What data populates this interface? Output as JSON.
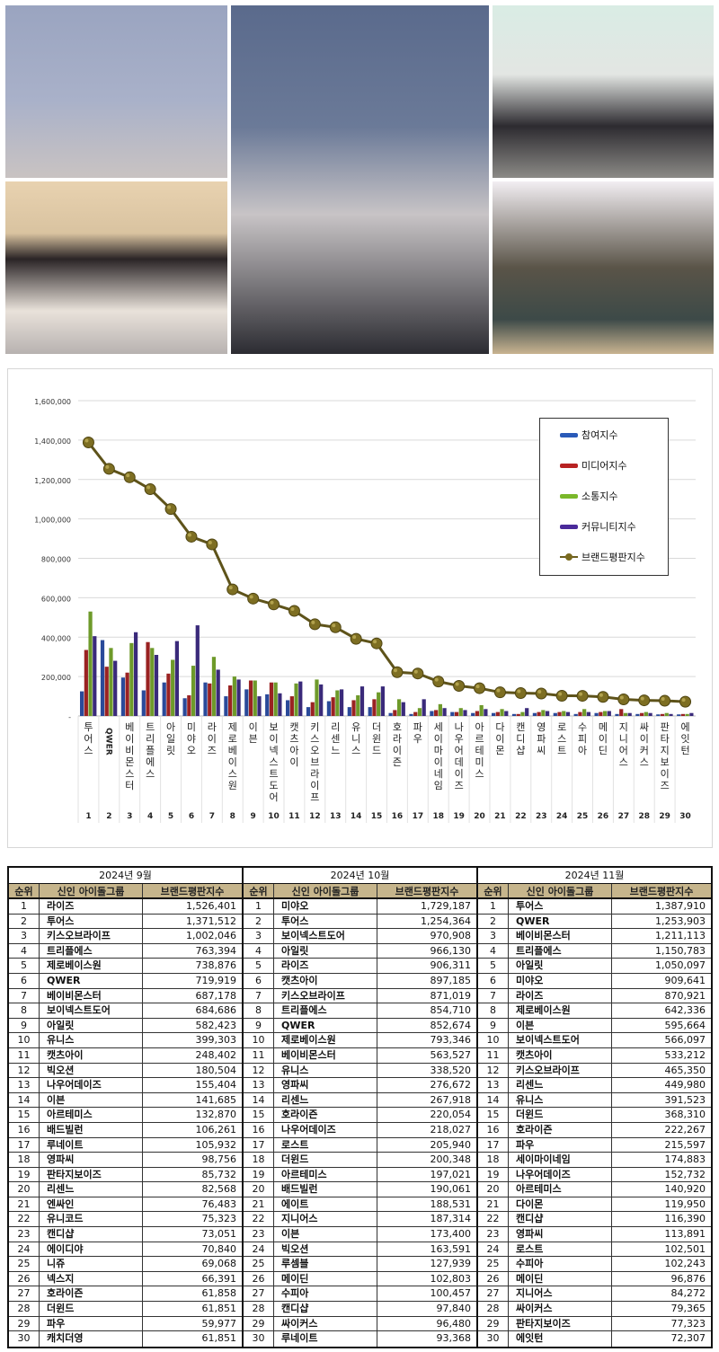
{
  "photos": [
    {
      "id": "photo-girl-group-5-members",
      "caption": ""
    },
    {
      "id": "photo-large-girl-group",
      "caption": ""
    },
    {
      "id": "photo-boy-group-5-members",
      "caption": ""
    },
    {
      "id": "photo-band-4-members",
      "caption": ""
    },
    {
      "id": "photo-girl-group-6-members",
      "caption": ""
    }
  ],
  "chart_data": {
    "type": "bar",
    "title": "",
    "xlabel": "",
    "ylabel": "",
    "ylim": [
      0,
      1600000
    ],
    "yticks": [
      "-",
      "200,000",
      "400,000",
      "600,000",
      "800,000",
      "1,000,000",
      "1,200,000",
      "1,400,000",
      "1,600,000"
    ],
    "grid": true,
    "legend_position": "upper-right",
    "categories": [
      "투어스",
      "QWER",
      "베이비몬스터",
      "트리플에스",
      "아일릿",
      "미야오",
      "라이즈",
      "제로베이스원",
      "이븐",
      "보이넥스트도어",
      "캣츠아이",
      "키스오브라이프",
      "리센느",
      "유니스",
      "더윈드",
      "호라이즌",
      "파우",
      "세이마이네임",
      "나우어데이즈",
      "아르테미스",
      "다이몬",
      "캔디샵",
      "영파씨",
      "로스트",
      "수피아",
      "메이딘",
      "지니어스",
      "싸이커스",
      "판타지보이즈",
      "에잇턴"
    ],
    "ranks": [
      1,
      2,
      3,
      4,
      5,
      6,
      7,
      8,
      9,
      10,
      11,
      12,
      13,
      14,
      15,
      16,
      17,
      18,
      19,
      20,
      21,
      22,
      23,
      24,
      25,
      26,
      27,
      28,
      29,
      30
    ],
    "series": [
      {
        "name": "참여지수",
        "color": "#2a4a9a",
        "values": [
          125000,
          385000,
          195000,
          130000,
          170000,
          90000,
          170000,
          100000,
          135000,
          110000,
          80000,
          45000,
          75000,
          45000,
          45000,
          15000,
          10000,
          25000,
          20000,
          15000,
          15000,
          10000,
          15000,
          15000,
          10000,
          15000,
          10000,
          10000,
          8000,
          8000
        ]
      },
      {
        "name": "미디어지수",
        "color": "#9a2222",
        "values": [
          335000,
          250000,
          220000,
          375000,
          215000,
          105000,
          165000,
          155000,
          180000,
          170000,
          100000,
          70000,
          95000,
          80000,
          85000,
          30000,
          20000,
          30000,
          20000,
          25000,
          20000,
          10000,
          20000,
          20000,
          20000,
          20000,
          35000,
          15000,
          10000,
          10000
        ]
      },
      {
        "name": "소통지수",
        "color": "#6e9a2a",
        "values": [
          530000,
          345000,
          370000,
          345000,
          285000,
          255000,
          300000,
          200000,
          180000,
          170000,
          165000,
          185000,
          130000,
          105000,
          120000,
          85000,
          40000,
          60000,
          40000,
          55000,
          35000,
          20000,
          30000,
          25000,
          35000,
          25000,
          15000,
          20000,
          15000,
          10000
        ]
      },
      {
        "name": "커뮤니티지수",
        "color": "#3a2a7a",
        "values": [
          405000,
          280000,
          425000,
          310000,
          380000,
          460000,
          235000,
          185000,
          100000,
          115000,
          175000,
          160000,
          135000,
          150000,
          150000,
          70000,
          85000,
          40000,
          30000,
          35000,
          25000,
          40000,
          25000,
          20000,
          20000,
          25000,
          15000,
          15000,
          10000,
          15000
        ]
      },
      {
        "name": "브랜드평판지수",
        "color": "#6b5e1e",
        "type": "line",
        "values": [
          1387910,
          1253903,
          1211113,
          1150783,
          1050097,
          909641,
          870921,
          642336,
          595664,
          566097,
          533212,
          465350,
          449980,
          391523,
          368310,
          222267,
          215597,
          174883,
          152732,
          140920,
          119950,
          116390,
          113891,
          102501,
          102243,
          96876,
          84272,
          79365,
          77323,
          72307
        ]
      }
    ]
  },
  "legend": {
    "items": [
      {
        "label": "참여지수",
        "color": "#2a5ab8"
      },
      {
        "label": "미디어지수",
        "color": "#b82222"
      },
      {
        "label": "소통지수",
        "color": "#7ab82a"
      },
      {
        "label": "커뮤니티지수",
        "color": "#4a2a9a"
      },
      {
        "label": "브랜드평판지수",
        "color": "#6b5e1e"
      }
    ]
  },
  "tables": {
    "headers": {
      "rank": "순위",
      "name": "신인 아이돌그룹",
      "score": "브랜드평판지수"
    },
    "months": [
      {
        "title": "2024년 9월",
        "rows": [
          {
            "rank": "1",
            "name": "라이즈",
            "score": "1,526,401"
          },
          {
            "rank": "2",
            "name": "투어스",
            "score": "1,371,512"
          },
          {
            "rank": "3",
            "name": "키스오브라이프",
            "score": "1,002,046"
          },
          {
            "rank": "4",
            "name": "트리플에스",
            "score": "763,394"
          },
          {
            "rank": "5",
            "name": "제로베이스원",
            "score": "738,876"
          },
          {
            "rank": "6",
            "name": "QWER",
            "score": "719,919"
          },
          {
            "rank": "7",
            "name": "베이비몬스터",
            "score": "687,178"
          },
          {
            "rank": "8",
            "name": "보이넥스트도어",
            "score": "684,686"
          },
          {
            "rank": "9",
            "name": "아일릿",
            "score": "582,423"
          },
          {
            "rank": "10",
            "name": "유니스",
            "score": "399,303"
          },
          {
            "rank": "11",
            "name": "캣츠아이",
            "score": "248,402"
          },
          {
            "rank": "12",
            "name": "빅오션",
            "score": "180,504"
          },
          {
            "rank": "13",
            "name": "나우어데이즈",
            "score": "155,404"
          },
          {
            "rank": "14",
            "name": "이븐",
            "score": "141,685"
          },
          {
            "rank": "15",
            "name": "아르테미스",
            "score": "132,870"
          },
          {
            "rank": "16",
            "name": "배드빌런",
            "score": "106,261"
          },
          {
            "rank": "17",
            "name": "루네이트",
            "score": "105,932"
          },
          {
            "rank": "18",
            "name": "영파씨",
            "score": "98,756"
          },
          {
            "rank": "19",
            "name": "판타지보이즈",
            "score": "85,732"
          },
          {
            "rank": "20",
            "name": "리센느",
            "score": "82,568"
          },
          {
            "rank": "21",
            "name": "엔싸인",
            "score": "76,483"
          },
          {
            "rank": "22",
            "name": "유니코드",
            "score": "75,323"
          },
          {
            "rank": "23",
            "name": "캔디샵",
            "score": "73,051"
          },
          {
            "rank": "24",
            "name": "에이디야",
            "score": "70,840"
          },
          {
            "rank": "25",
            "name": "니쥬",
            "score": "69,068"
          },
          {
            "rank": "26",
            "name": "넥스지",
            "score": "66,391"
          },
          {
            "rank": "27",
            "name": "호라이즌",
            "score": "61,858"
          },
          {
            "rank": "28",
            "name": "더윈드",
            "score": "61,851"
          },
          {
            "rank": "29",
            "name": "파우",
            "score": "59,977"
          },
          {
            "rank": "30",
            "name": "캐치더영",
            "score": "61,851"
          }
        ]
      },
      {
        "title": "2024년 10월",
        "rows": [
          {
            "rank": "1",
            "name": "미야오",
            "score": "1,729,187"
          },
          {
            "rank": "2",
            "name": "투어스",
            "score": "1,254,364"
          },
          {
            "rank": "3",
            "name": "보이넥스트도어",
            "score": "970,908"
          },
          {
            "rank": "4",
            "name": "아일릿",
            "score": "966,130"
          },
          {
            "rank": "5",
            "name": "라이즈",
            "score": "906,311"
          },
          {
            "rank": "6",
            "name": "캣츠아이",
            "score": "897,185"
          },
          {
            "rank": "7",
            "name": "키스오브라이프",
            "score": "871,019"
          },
          {
            "rank": "8",
            "name": "트리플에스",
            "score": "854,710"
          },
          {
            "rank": "9",
            "name": "QWER",
            "score": "852,674"
          },
          {
            "rank": "10",
            "name": "제로베이스원",
            "score": "793,346"
          },
          {
            "rank": "11",
            "name": "베이비몬스터",
            "score": "563,527"
          },
          {
            "rank": "12",
            "name": "유니스",
            "score": "338,520"
          },
          {
            "rank": "13",
            "name": "영파씨",
            "score": "276,672"
          },
          {
            "rank": "14",
            "name": "리센느",
            "score": "267,918"
          },
          {
            "rank": "15",
            "name": "호라이즌",
            "score": "220,054"
          },
          {
            "rank": "16",
            "name": "나우어데이즈",
            "score": "218,027"
          },
          {
            "rank": "17",
            "name": "로스트",
            "score": "205,940"
          },
          {
            "rank": "18",
            "name": "더윈드",
            "score": "200,348"
          },
          {
            "rank": "19",
            "name": "아르테미스",
            "score": "197,021"
          },
          {
            "rank": "20",
            "name": "배드빌런",
            "score": "190,061"
          },
          {
            "rank": "21",
            "name": "에이트",
            "score": "188,531"
          },
          {
            "rank": "22",
            "name": "지니어스",
            "score": "187,314"
          },
          {
            "rank": "23",
            "name": "이븐",
            "score": "173,400"
          },
          {
            "rank": "24",
            "name": "빅오션",
            "score": "163,591"
          },
          {
            "rank": "25",
            "name": "루셈블",
            "score": "127,939"
          },
          {
            "rank": "26",
            "name": "메이딘",
            "score": "102,803"
          },
          {
            "rank": "27",
            "name": "수피아",
            "score": "100,457"
          },
          {
            "rank": "28",
            "name": "캔디샵",
            "score": "97,840"
          },
          {
            "rank": "29",
            "name": "싸이커스",
            "score": "96,480"
          },
          {
            "rank": "30",
            "name": "루네이트",
            "score": "93,368"
          }
        ]
      },
      {
        "title": "2024년 11월",
        "rows": [
          {
            "rank": "1",
            "name": "투어스",
            "score": "1,387,910"
          },
          {
            "rank": "2",
            "name": "QWER",
            "score": "1,253,903"
          },
          {
            "rank": "3",
            "name": "베이비몬스터",
            "score": "1,211,113"
          },
          {
            "rank": "4",
            "name": "트리플에스",
            "score": "1,150,783"
          },
          {
            "rank": "5",
            "name": "아일릿",
            "score": "1,050,097"
          },
          {
            "rank": "6",
            "name": "미야오",
            "score": "909,641"
          },
          {
            "rank": "7",
            "name": "라이즈",
            "score": "870,921"
          },
          {
            "rank": "8",
            "name": "제로베이스원",
            "score": "642,336"
          },
          {
            "rank": "9",
            "name": "이븐",
            "score": "595,664"
          },
          {
            "rank": "10",
            "name": "보이넥스트도어",
            "score": "566,097"
          },
          {
            "rank": "11",
            "name": "캣츠아이",
            "score": "533,212"
          },
          {
            "rank": "12",
            "name": "키스오브라이프",
            "score": "465,350"
          },
          {
            "rank": "13",
            "name": "리센느",
            "score": "449,980"
          },
          {
            "rank": "14",
            "name": "유니스",
            "score": "391,523"
          },
          {
            "rank": "15",
            "name": "더윈드",
            "score": "368,310"
          },
          {
            "rank": "16",
            "name": "호라이즌",
            "score": "222,267"
          },
          {
            "rank": "17",
            "name": "파우",
            "score": "215,597"
          },
          {
            "rank": "18",
            "name": "세이마이네임",
            "score": "174,883"
          },
          {
            "rank": "19",
            "name": "나우어데이즈",
            "score": "152,732"
          },
          {
            "rank": "20",
            "name": "아르테미스",
            "score": "140,920"
          },
          {
            "rank": "21",
            "name": "다이몬",
            "score": "119,950"
          },
          {
            "rank": "22",
            "name": "캔디샵",
            "score": "116,390"
          },
          {
            "rank": "23",
            "name": "영파씨",
            "score": "113,891"
          },
          {
            "rank": "24",
            "name": "로스트",
            "score": "102,501"
          },
          {
            "rank": "25",
            "name": "수피아",
            "score": "102,243"
          },
          {
            "rank": "26",
            "name": "메이딘",
            "score": "96,876"
          },
          {
            "rank": "27",
            "name": "지니어스",
            "score": "84,272"
          },
          {
            "rank": "28",
            "name": "싸이커스",
            "score": "79,365"
          },
          {
            "rank": "29",
            "name": "판타지보이즈",
            "score": "77,323"
          },
          {
            "rank": "30",
            "name": "에잇턴",
            "score": "72,307"
          }
        ]
      }
    ]
  }
}
